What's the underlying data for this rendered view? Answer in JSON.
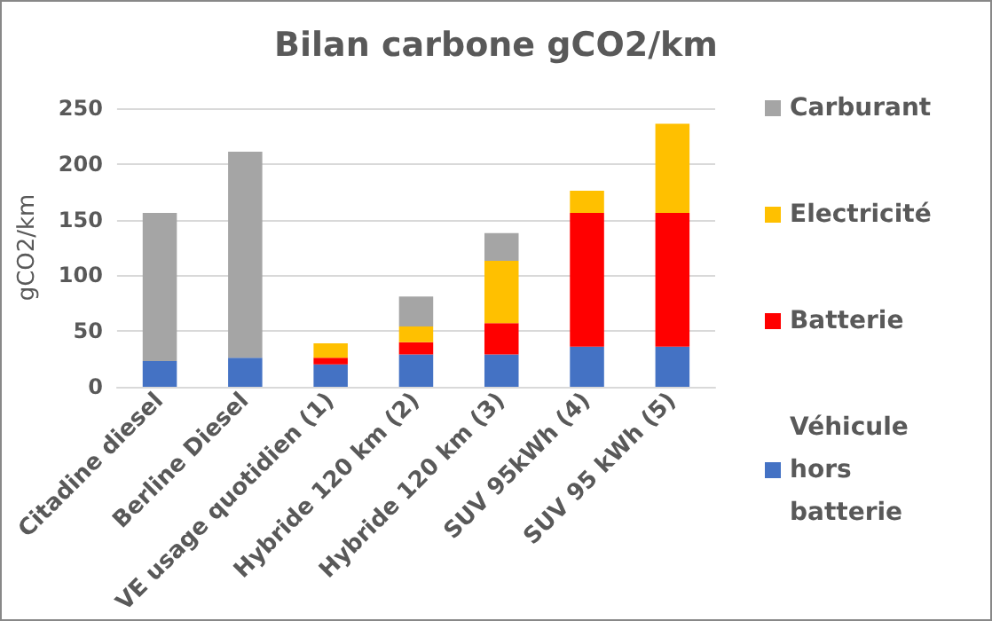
{
  "chart_data": {
    "type": "bar",
    "title": "Bilan carbone gCO2/km",
    "ylabel": "gCO2/km",
    "categories": [
      "Citadine diesel",
      "Berline Diesel",
      "VE usage quotidien (1)",
      "Hybride 120 km (2)",
      "Hybride 120 km (3)",
      "SUV 95kWh (4)",
      "SUV 95 kWh (5)"
    ],
    "stacked": true,
    "series": [
      {
        "name": "Véhicule hors batterie",
        "color": "#4472c4",
        "values": [
          23,
          26,
          20,
          29,
          29,
          36,
          36
        ]
      },
      {
        "name": "Batterie",
        "color": "#ff0000",
        "values": [
          null,
          null,
          6,
          11,
          28,
          120,
          120
        ]
      },
      {
        "name": "Electricité",
        "color": "#ffc000",
        "values": [
          null,
          null,
          13,
          14,
          56,
          20,
          80
        ]
      },
      {
        "name": "Carburant",
        "color": "#a5a5a5",
        "values": [
          133,
          185,
          null,
          27,
          25,
          null,
          null
        ]
      }
    ],
    "ylim": [
      0,
      250
    ],
    "yticks": [
      0,
      50,
      100,
      150,
      200,
      250
    ],
    "grid": "y",
    "legend": "right"
  }
}
